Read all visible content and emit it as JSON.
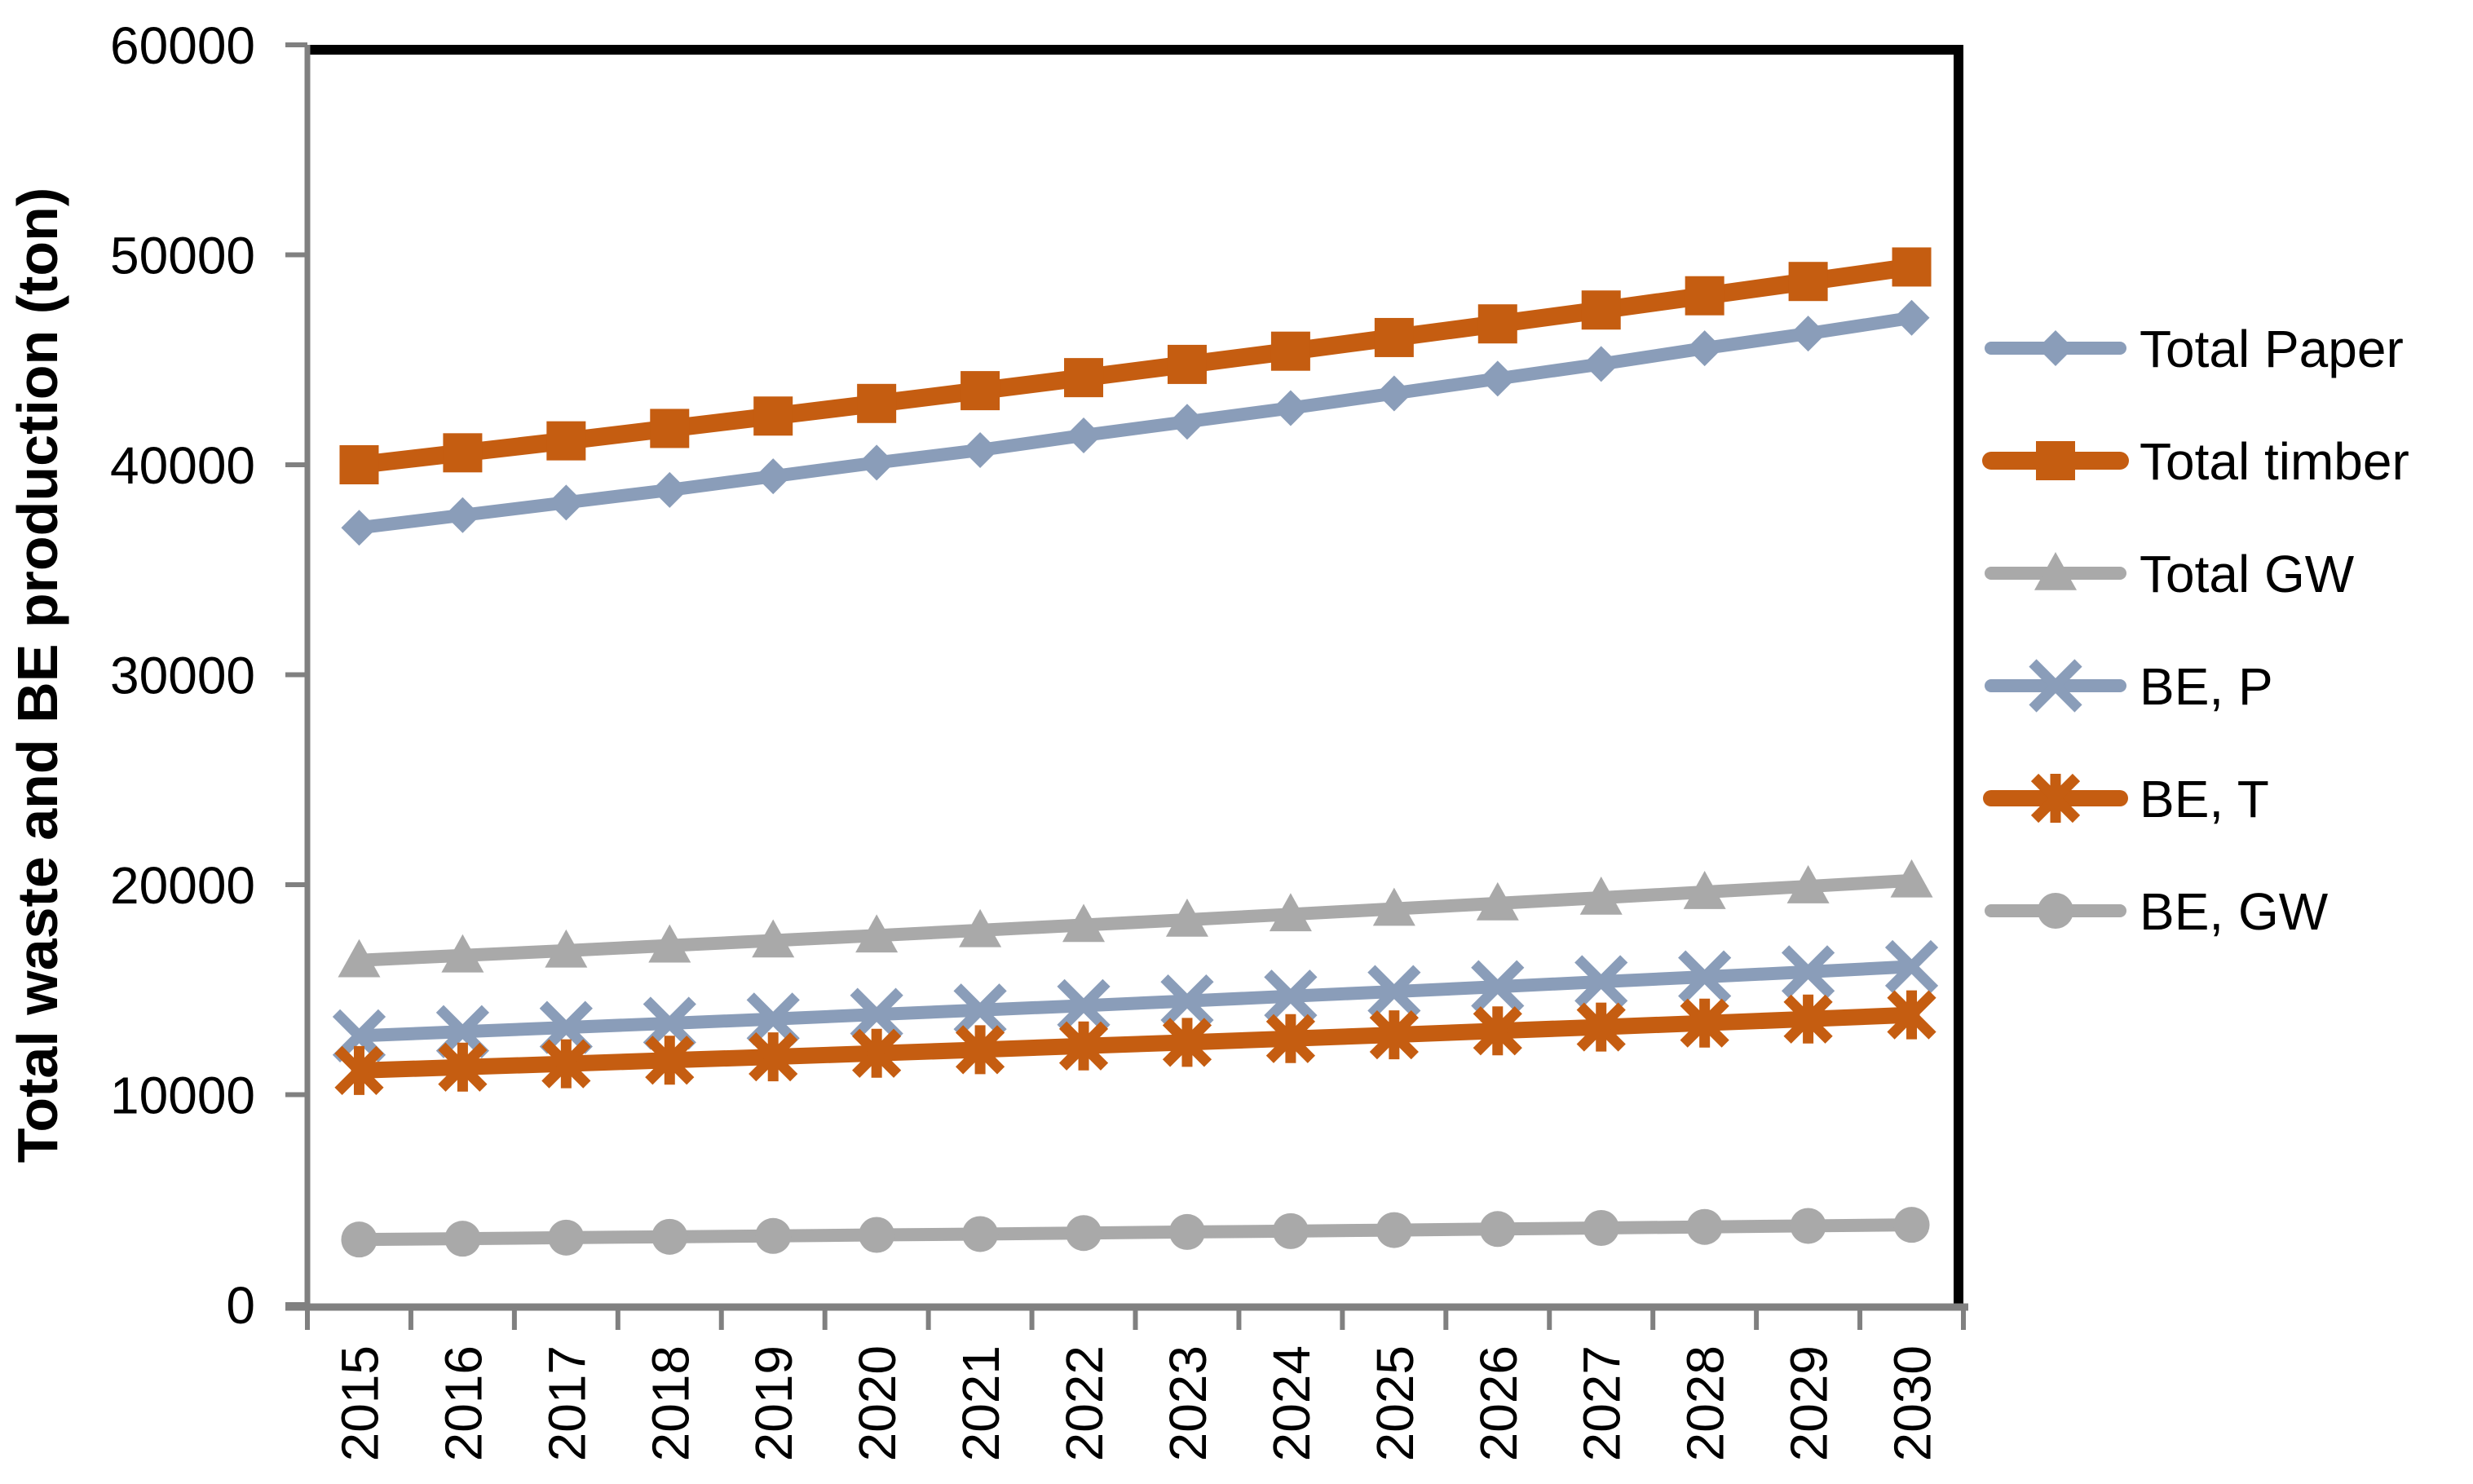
{
  "chart_data": {
    "type": "line",
    "title": "",
    "xlabel": "",
    "ylabel": "Total waste and BE production (ton)",
    "ylim": [
      0,
      60000
    ],
    "ytick_step": 10000,
    "ytick_labels": [
      "0",
      "10000",
      "20000",
      "30000",
      "40000",
      "50000",
      "60000"
    ],
    "grid": false,
    "legend_position": "right",
    "x": [
      2015,
      2016,
      2017,
      2018,
      2019,
      2020,
      2021,
      2022,
      2023,
      2024,
      2025,
      2026,
      2027,
      2028,
      2029,
      2030
    ],
    "series": [
      {
        "name": "Total Paper",
        "color": "#8A9DB9",
        "marker": "diamond",
        "line_width": 16,
        "values": [
          37000,
          37600,
          38200,
          38800,
          39450,
          40100,
          40700,
          41400,
          42050,
          42700,
          43400,
          44100,
          44800,
          45550,
          46250,
          47000
        ]
      },
      {
        "name": "Total timber",
        "color": "#C55D11",
        "marker": "square",
        "line_width": 22,
        "values": [
          40000,
          40570,
          41140,
          41730,
          42320,
          42920,
          43530,
          44150,
          44780,
          45410,
          46060,
          46710,
          47370,
          48050,
          48730,
          49420
        ]
      },
      {
        "name": "Total GW",
        "color": "#A9A9A9",
        "marker": "triangle",
        "line_width": 16,
        "values": [
          16400,
          16630,
          16860,
          17100,
          17340,
          17580,
          17830,
          18080,
          18330,
          18590,
          18850,
          19110,
          19380,
          19650,
          19920,
          20200
        ]
      },
      {
        "name": "BE, P",
        "color": "#8A9DB9",
        "marker": "x",
        "line_width": 16,
        "values": [
          12800,
          13000,
          13200,
          13400,
          13600,
          13820,
          14030,
          14240,
          14460,
          14690,
          14910,
          15140,
          15380,
          15610,
          15850,
          16100
        ]
      },
      {
        "name": "BE, T",
        "color": "#C55D11",
        "marker": "asterisk",
        "line_width": 20,
        "values": [
          11150,
          11310,
          11470,
          11640,
          11800,
          11970,
          12140,
          12320,
          12490,
          12670,
          12850,
          13040,
          13220,
          13410,
          13600,
          13800
        ]
      },
      {
        "name": "BE, GW",
        "color": "#A9A9A9",
        "marker": "circle",
        "line_width": 16,
        "values": [
          3100,
          3140,
          3190,
          3230,
          3270,
          3320,
          3360,
          3410,
          3460,
          3500,
          3550,
          3600,
          3650,
          3700,
          3750,
          3800
        ]
      }
    ],
    "colors": {
      "frame": "#000000",
      "axis": "#808080",
      "text": "#000000"
    }
  }
}
